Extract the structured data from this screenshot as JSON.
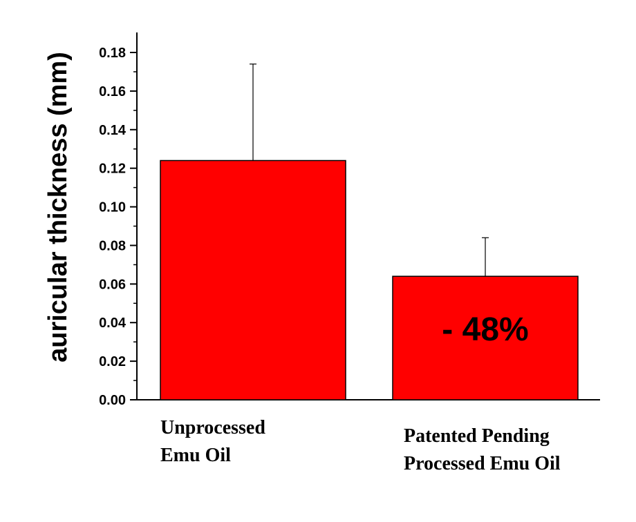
{
  "chart_data": {
    "type": "bar",
    "title": "",
    "xlabel": "",
    "ylabel": "auricular thickness (mm)",
    "ylim": [
      0,
      0.19
    ],
    "yticks": [
      "0.00",
      "0.02",
      "0.04",
      "0.06",
      "0.08",
      "0.10",
      "0.12",
      "0.14",
      "0.16",
      "0.18"
    ],
    "categories": [
      [
        "Unprocessed",
        "Emu Oil"
      ],
      [
        "Patented Pending",
        "Processed Emu Oil"
      ]
    ],
    "values": [
      0.124,
      0.064
    ],
    "errors": [
      0.05,
      0.02
    ],
    "bar_color": "#ff0000",
    "grid": false,
    "annotations": [
      {
        "category_index": 1,
        "text": "- 48%"
      }
    ]
  }
}
